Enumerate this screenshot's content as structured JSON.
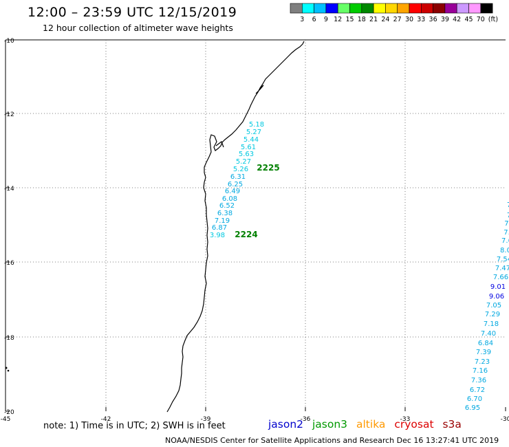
{
  "header": {
    "title": "12:00 – 23:59 UTC 12/15/2019",
    "subtitle": "12 hour collection of altimeter wave heights"
  },
  "legend": {
    "ticks": [
      "3",
      "6",
      "9",
      "12",
      "15",
      "18",
      "21",
      "24",
      "27",
      "30",
      "33",
      "36",
      "39",
      "42",
      "45",
      "70"
    ],
    "unit": "(ft)",
    "colors": [
      "#7f7f7f",
      "#00ffff",
      "#00bfff",
      "#0000ff",
      "#66ff66",
      "#00cc00",
      "#008800",
      "#ffff00",
      "#ffd700",
      "#ffa500",
      "#ff0000",
      "#cc0000",
      "#8b0000",
      "#990099",
      "#cc99ff",
      "#ff99ff",
      "#000000"
    ]
  },
  "map": {
    "x_ticks": [
      "-45",
      "-42",
      "-39",
      "-36",
      "-33",
      "-30"
    ],
    "y_ticks": [
      "-10",
      "-12",
      "-14",
      "-16",
      "-18",
      "-20"
    ],
    "grid": "dotted"
  },
  "tracks": [
    {
      "label": "2225",
      "label_color": "#008000",
      "points": [
        {
          "v": "5.18",
          "c": "#00c8e0"
        },
        {
          "v": "5.27",
          "c": "#00c8e0"
        },
        {
          "v": "5.44",
          "c": "#00c8e0"
        },
        {
          "v": "5.61",
          "c": "#00c8e0"
        },
        {
          "v": "5.63",
          "c": "#00c8e0"
        },
        {
          "v": "5.27",
          "c": "#00c8e0"
        },
        {
          "v": "5.26",
          "c": "#00c8e0"
        },
        {
          "v": "6.31",
          "c": "#00a8e0"
        },
        {
          "v": "6.25",
          "c": "#00a8e0"
        },
        {
          "v": "6.49",
          "c": "#00a8e0"
        },
        {
          "v": "6.08",
          "c": "#00a8e0"
        },
        {
          "v": "6.52",
          "c": "#00a8e0"
        },
        {
          "v": "6.38",
          "c": "#00a8e0"
        },
        {
          "v": "7.19",
          "c": "#00a8e0"
        },
        {
          "v": "6.87",
          "c": "#00a8e0"
        },
        {
          "v": "3.98",
          "c": "#00c8e0"
        }
      ]
    },
    {
      "label": "2224",
      "label_color": "#008000",
      "points": []
    },
    {
      "label": "",
      "label_color": "#008000",
      "points": [
        {
          "v": "7",
          "c": "#00a8e0"
        },
        {
          "v": "7",
          "c": "#00a8e0"
        },
        {
          "v": "7.",
          "c": "#00a8e0"
        },
        {
          "v": "7.",
          "c": "#00a8e0"
        },
        {
          "v": "7.6",
          "c": "#00a8e0"
        },
        {
          "v": "8.0",
          "c": "#00a8e0"
        },
        {
          "v": "7.54",
          "c": "#00a8e0"
        },
        {
          "v": "7.47",
          "c": "#00a8e0"
        },
        {
          "v": "7.66",
          "c": "#00a8e0"
        },
        {
          "v": "9.01",
          "c": "#0000e0"
        },
        {
          "v": "9.06",
          "c": "#0000e0"
        },
        {
          "v": "7.05",
          "c": "#00a8e0"
        },
        {
          "v": "7.29",
          "c": "#00a8e0"
        },
        {
          "v": "7.18",
          "c": "#00a8e0"
        },
        {
          "v": "7.40",
          "c": "#00a8e0"
        },
        {
          "v": "6.84",
          "c": "#00a8e0"
        },
        {
          "v": "7.39",
          "c": "#00a8e0"
        },
        {
          "v": "7.23",
          "c": "#00a8e0"
        },
        {
          "v": "7.16",
          "c": "#00a8e0"
        },
        {
          "v": "7.36",
          "c": "#00a8e0"
        },
        {
          "v": "6.72",
          "c": "#00a8e0"
        },
        {
          "v": "6.70",
          "c": "#00a8e0"
        },
        {
          "v": "6.95",
          "c": "#00a8e0"
        }
      ]
    }
  ],
  "footer": {
    "note": "note:  1)  Time is in UTC;  2)  SWH is in feet",
    "credit": "NOAA/NESDIS Center for Satellite Applications and Research     Dec 16 13:27:41 UTC 2019",
    "satellites": [
      {
        "name": "jason2",
        "color": "#0000cc"
      },
      {
        "name": "jason3",
        "color": "#009900"
      },
      {
        "name": "altika",
        "color": "#ff9900"
      },
      {
        "name": "cryosat",
        "color": "#dd0000"
      },
      {
        "name": "s3a",
        "color": "#990000"
      }
    ]
  }
}
